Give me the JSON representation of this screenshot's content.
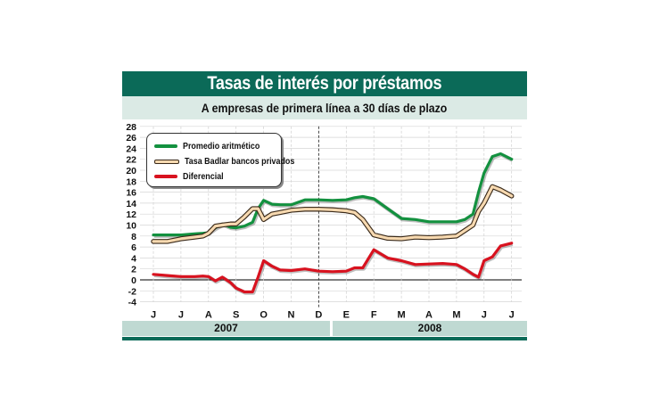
{
  "header": {
    "title": "Tasas de interés por préstamos",
    "subtitle": "A empresas de primera línea a 30 días de plazo"
  },
  "colors": {
    "brand_green": "#0b6a58",
    "subtitle_bg": "#dbeae5",
    "year_bar_bg": "#bfd9d2",
    "promedio": "#13913f",
    "badlar_fill": "#f7d9b0",
    "badlar_outline": "#3a2a1a",
    "diferencial": "#d8121f"
  },
  "legend": {
    "items": [
      {
        "label": "Promedio aritmético",
        "color": "#13913f"
      },
      {
        "label": "Tasa Badlar bancos privados",
        "color": "#f7d9b0"
      },
      {
        "label": "Diferencial",
        "color": "#d8121f"
      }
    ]
  },
  "x_axis": {
    "months": [
      "J",
      "J",
      "A",
      "S",
      "O",
      "N",
      "D",
      "E",
      "F",
      "M",
      "A",
      "M",
      "J",
      "J"
    ],
    "years": [
      {
        "label": "2007"
      },
      {
        "label": "2008"
      }
    ]
  },
  "chart_data": {
    "type": "line",
    "title": "Tasas de interés por préstamos",
    "subtitle": "A empresas de primera línea a 30 días de plazo",
    "xlabel": "",
    "ylabel": "",
    "ylim": [
      -4,
      28
    ],
    "yticks": [
      28,
      26,
      24,
      22,
      20,
      18,
      16,
      14,
      12,
      10,
      8,
      6,
      4,
      2,
      0,
      -2,
      -4
    ],
    "categories": [
      "J",
      "J",
      "A",
      "S",
      "O",
      "N",
      "D",
      "E",
      "F",
      "M",
      "A",
      "M",
      "J",
      "J"
    ],
    "year_groups": [
      {
        "label": "2007",
        "months": [
          "J",
          "J",
          "A",
          "S",
          "O",
          "N",
          "D"
        ]
      },
      {
        "label": "2008",
        "months": [
          "E",
          "F",
          "M",
          "A",
          "M",
          "J",
          "J"
        ]
      }
    ],
    "grid": true,
    "legend_position": "upper-left",
    "x": [
      0,
      0.5,
      1,
      1.5,
      1.8,
      2,
      2.25,
      2.5,
      2.8,
      3,
      3.3,
      3.6,
      3.8,
      4,
      4.3,
      4.6,
      5,
      5.5,
      6,
      6.5,
      7,
      7.3,
      7.6,
      8,
      8.5,
      9,
      9.5,
      10,
      10.5,
      11,
      11.3,
      11.6,
      11.8,
      12,
      12.3,
      12.6,
      13
    ],
    "series": [
      {
        "name": "Promedio aritmético",
        "values": [
          8.2,
          8.2,
          8.2,
          8.4,
          8.5,
          8.6,
          9.5,
          10.2,
          9.6,
          9.5,
          9.8,
          10.5,
          13,
          14.5,
          13.8,
          13.7,
          13.7,
          14.6,
          14.6,
          14.5,
          14.6,
          15.0,
          15.2,
          14.8,
          13.0,
          11.2,
          11.0,
          10.6,
          10.6,
          10.6,
          11.0,
          12.0,
          16.0,
          19.5,
          22.5,
          23.0,
          22.0
        ]
      },
      {
        "name": "Tasa Badlar bancos privados",
        "values": [
          7.0,
          7.0,
          7.5,
          7.8,
          8.0,
          8.5,
          9.8,
          10.0,
          10.2,
          10.2,
          11.5,
          13.0,
          13.0,
          11.0,
          12.0,
          12.3,
          12.7,
          12.9,
          12.9,
          12.8,
          12.6,
          12.3,
          11.0,
          8.2,
          7.6,
          7.5,
          7.8,
          7.7,
          7.8,
          8.0,
          9.0,
          10.0,
          12.5,
          14.0,
          17.0,
          16.4,
          15.3
        ]
      },
      {
        "name": "Diferencial",
        "values": [
          1.0,
          0.8,
          0.6,
          0.6,
          0.7,
          0.6,
          -0.2,
          0.5,
          -0.5,
          -1.5,
          -2.2,
          -2.2,
          0.5,
          3.5,
          2.5,
          1.8,
          1.7,
          2.0,
          1.6,
          1.5,
          1.6,
          2.2,
          2.2,
          5.5,
          4.0,
          3.5,
          2.8,
          2.9,
          3.0,
          2.8,
          2.0,
          1.0,
          0.5,
          3.5,
          4.2,
          6.2,
          6.7
        ]
      }
    ]
  }
}
